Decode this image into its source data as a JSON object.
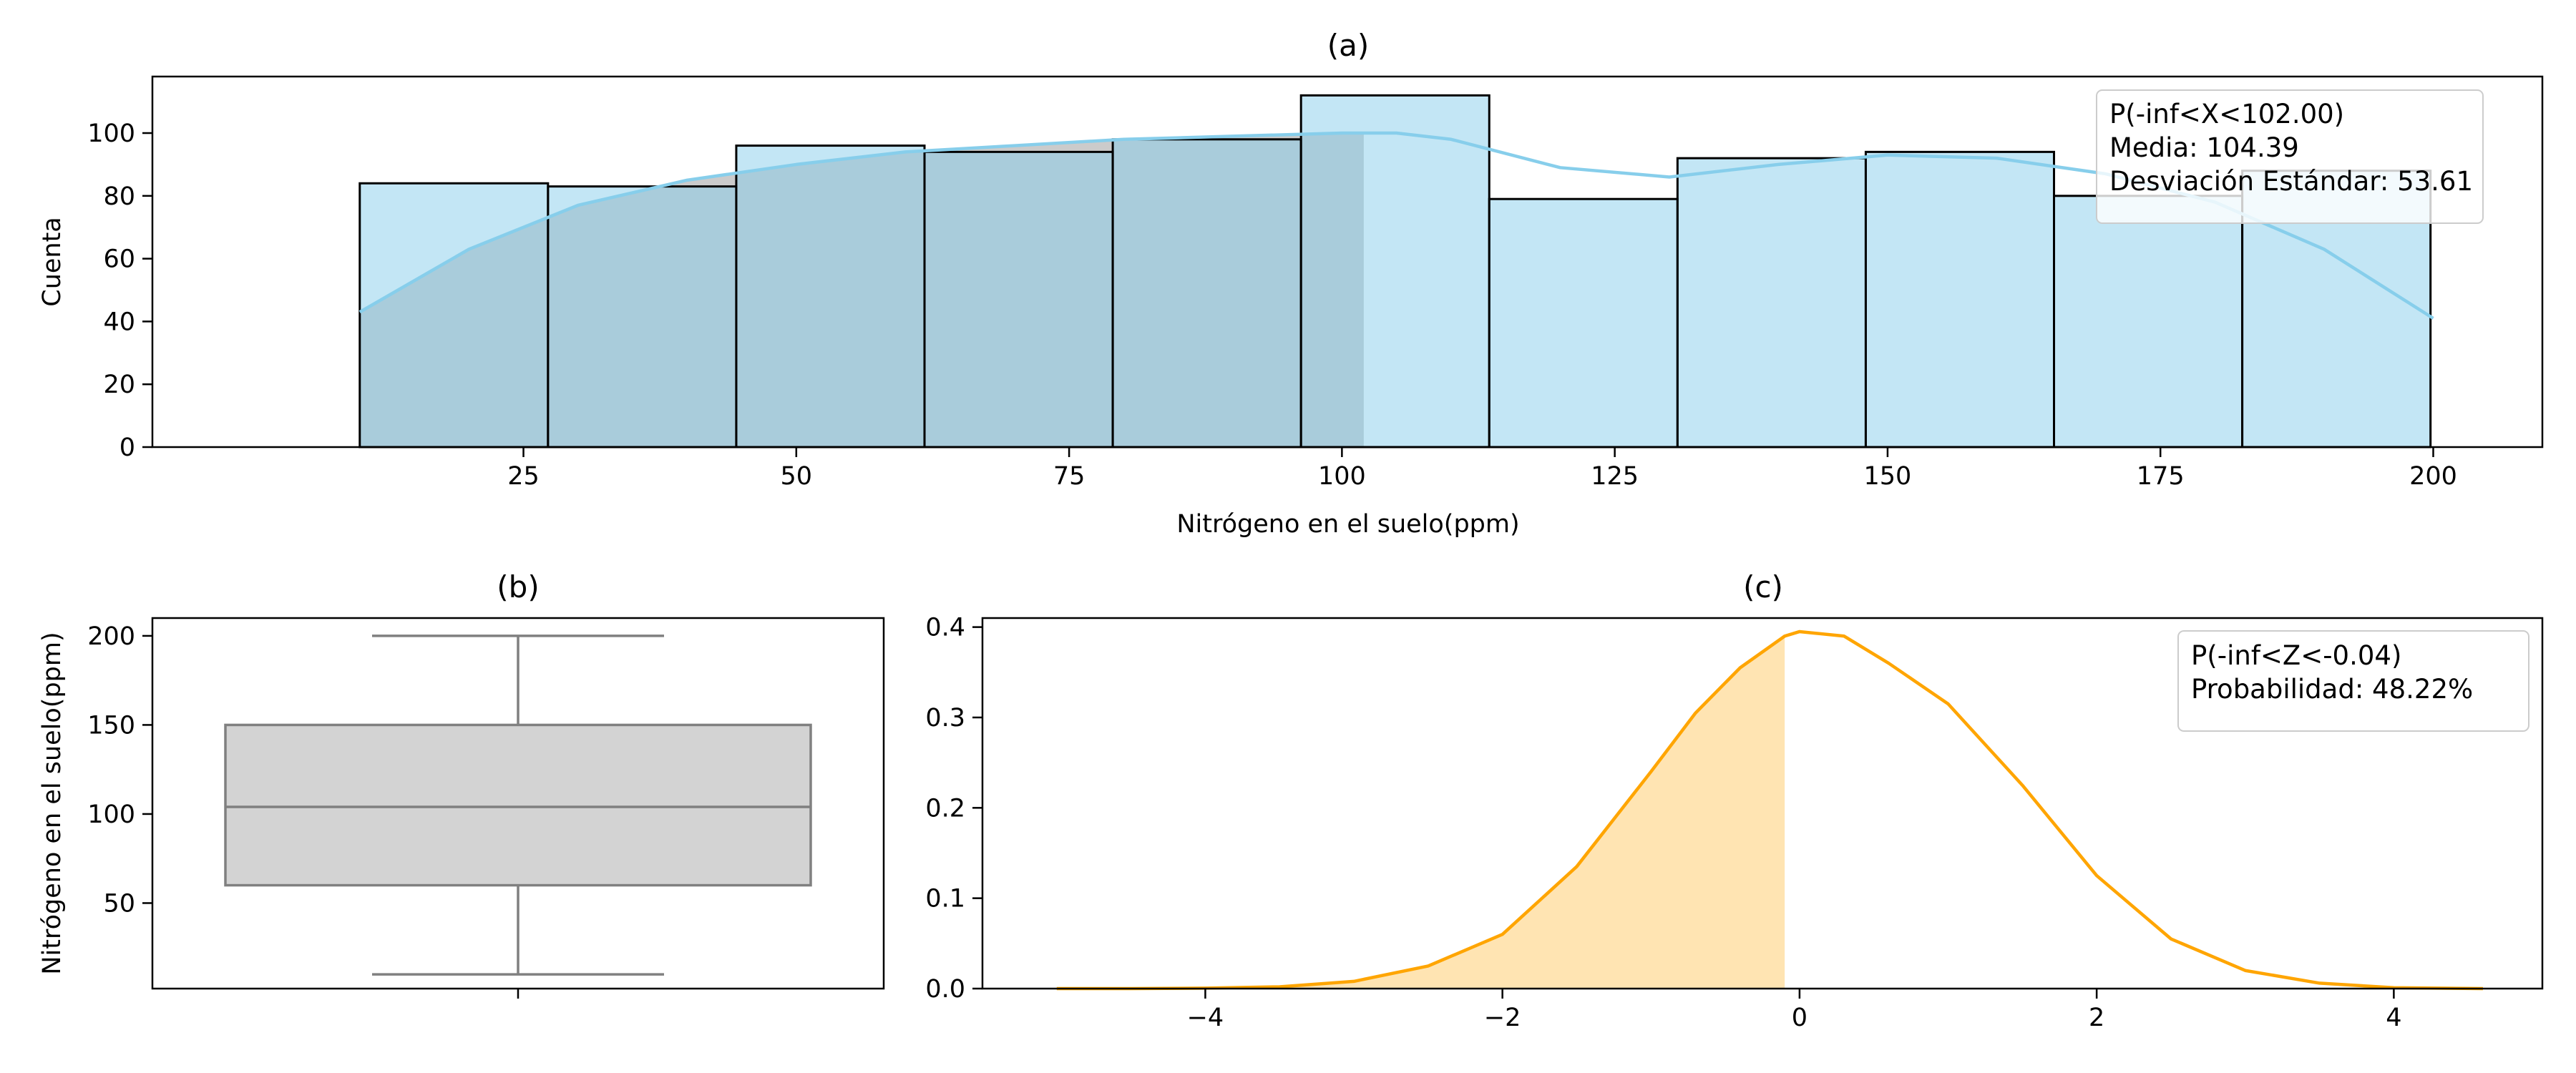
{
  "colors": {
    "hist_fill": "#87ceeb",
    "hist_shade": "#a9a9a9",
    "kde_line": "#87ceeb",
    "box_fill": "#d3d3d3",
    "box_line": "#808080",
    "density_line": "#ffa500",
    "density_fill": "#ffa500"
  },
  "chart_data": [
    {
      "type": "bar",
      "subtype": "histogram",
      "title": "(a)",
      "xlabel": "Nitrógeno en el suelo(ppm)",
      "ylabel": "Cuenta",
      "xlim": [
        -9,
        210
      ],
      "ylim": [
        0,
        118
      ],
      "xticks": [
        25,
        50,
        75,
        100,
        125,
        150,
        175,
        200
      ],
      "yticks": [
        0,
        20,
        40,
        60,
        80,
        100
      ],
      "bin_edges": [
        10,
        27.25,
        44.5,
        61.75,
        79,
        96.25,
        113.5,
        130.75,
        148,
        165.25,
        182.5,
        199.75
      ],
      "counts": [
        84,
        83,
        96,
        94,
        98,
        112,
        79,
        92,
        94,
        80,
        88
      ],
      "shaded_upto": 102.0,
      "kde_curve": {
        "x": [
          10,
          20,
          30,
          40,
          50,
          60,
          70,
          80,
          90,
          100,
          105,
          110,
          120,
          130,
          140,
          150,
          160,
          170,
          180,
          190,
          200
        ],
        "y": [
          43,
          63,
          77,
          85,
          90,
          94,
          96,
          98,
          99,
          100,
          100,
          98,
          89,
          86,
          90,
          93,
          92,
          87,
          78,
          63,
          41
        ]
      },
      "legend_position": "top-right",
      "legend": [
        "P(-inf<X<102.00)",
        "Media: 104.39",
        "Desviación Estándar: 53.61"
      ],
      "grid": false
    },
    {
      "type": "box",
      "title": "(b)",
      "ylabel": "Nitrógeno en el suelo(ppm)",
      "ylim": [
        2,
        210
      ],
      "yticks": [
        50,
        100,
        150,
        200
      ],
      "min": 10,
      "q1": 60,
      "median": 104,
      "q3": 150,
      "max": 200,
      "grid": false
    },
    {
      "type": "area",
      "title": "(c)",
      "xlim": [
        -5.5,
        5.0
      ],
      "ylim": [
        0,
        0.41
      ],
      "xticks": [
        -4,
        -2,
        0,
        2,
        4
      ],
      "xtick_labels": [
        "−4",
        "−2",
        "0",
        "2",
        "4"
      ],
      "yticks": [
        0.0,
        0.1,
        0.2,
        0.3,
        0.4
      ],
      "ytick_labels": [
        "0.0",
        "0.1",
        "0.2",
        "0.3",
        "0.4"
      ],
      "curve": {
        "x": [
          -5.0,
          -4.5,
          -4.0,
          -3.5,
          -3.0,
          -2.5,
          -2.0,
          -1.5,
          -1.0,
          -0.7,
          -0.4,
          -0.1,
          0.0,
          0.3,
          0.6,
          1.0,
          1.5,
          2.0,
          2.5,
          3.0,
          3.5,
          4.0,
          4.6
        ],
        "y": [
          0.0,
          0.0,
          0.0005,
          0.002,
          0.008,
          0.025,
          0.06,
          0.135,
          0.24,
          0.305,
          0.355,
          0.39,
          0.395,
          0.39,
          0.36,
          0.315,
          0.225,
          0.125,
          0.055,
          0.02,
          0.006,
          0.001,
          0.0
        ]
      },
      "shaded_upto": -0.1,
      "legend_position": "top-right",
      "legend": [
        "P(-inf<Z<-0.04)",
        "Probabilidad:  48.22%"
      ],
      "grid": false
    }
  ]
}
